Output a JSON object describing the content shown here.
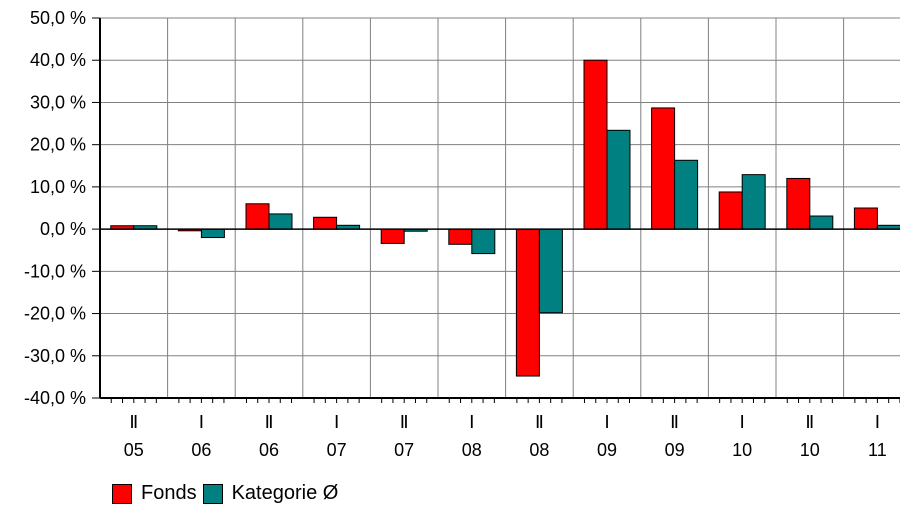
{
  "chart_data": {
    "type": "bar",
    "half_labels": [
      "Ⅱ",
      "Ⅰ",
      "Ⅱ",
      "Ⅰ",
      "Ⅱ",
      "Ⅰ",
      "Ⅱ",
      "Ⅰ",
      "Ⅱ",
      "Ⅰ",
      "Ⅱ",
      "Ⅰ"
    ],
    "year_labels": [
      "05",
      "06",
      "06",
      "07",
      "07",
      "08",
      "08",
      "09",
      "09",
      "10",
      "10",
      "11"
    ],
    "series": [
      {
        "name": "Fonds",
        "color": "#ff0000",
        "values": [
          0.8,
          -0.4,
          6.0,
          2.8,
          -3.4,
          -3.6,
          -34.8,
          40.0,
          28.7,
          8.8,
          12.0,
          5.0
        ]
      },
      {
        "name": "Kategorie Ø",
        "color": "#008080",
        "values": [
          0.8,
          -2.0,
          3.6,
          0.9,
          -0.5,
          -5.8,
          -19.8,
          23.4,
          16.3,
          12.9,
          3.1,
          0.9
        ]
      }
    ],
    "ylim": [
      -40,
      50
    ],
    "yticks": [
      50,
      40,
      30,
      20,
      10,
      0,
      -10,
      -20,
      -30,
      -40
    ],
    "ytick_labels": [
      "50,0 %",
      "40,0 %",
      "30,0 %",
      "20,0 %",
      "10,0 %",
      "0,0 %",
      "-10,0 %",
      "-20,0 %",
      "-30,0 %",
      "-40,0 %"
    ],
    "grid": true,
    "legend_position": "bottom-left"
  }
}
